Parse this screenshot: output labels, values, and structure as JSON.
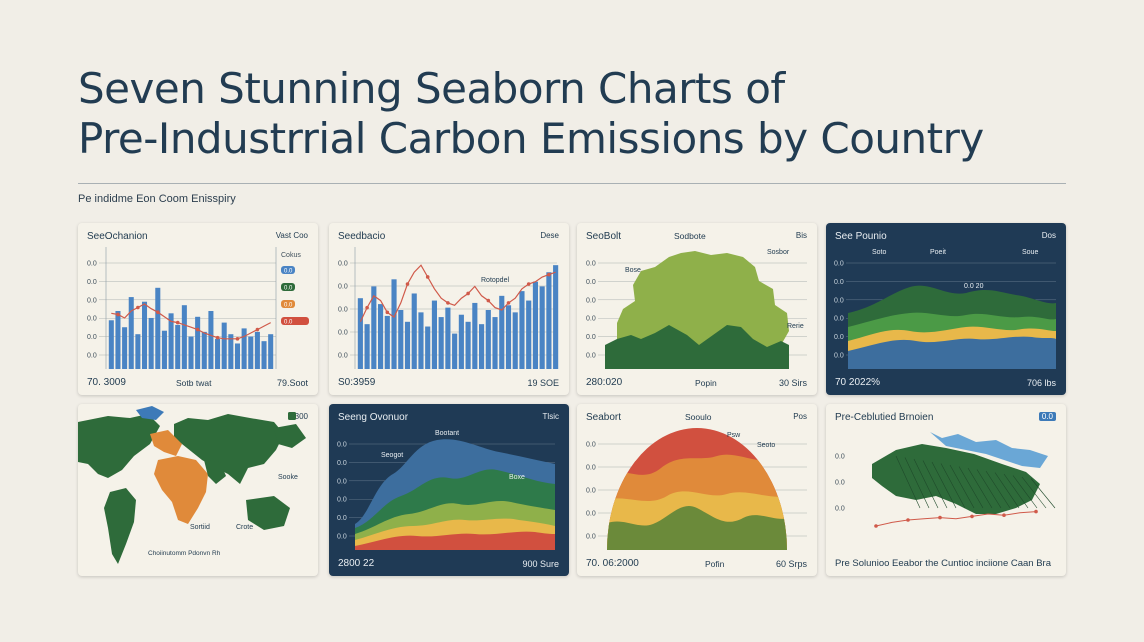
{
  "header": {
    "title_line1": "Seven Stunning Seaborn Charts of",
    "title_line2": "Pre-Industrrial Carbon Emissions by Country",
    "subtitle": "Pe  indidme Eon Coom Enisspiry"
  },
  "colors": {
    "background": "#f1eee7",
    "card": "#f5f2e9",
    "card_dark": "#1f3a55",
    "bar_blue": "#4a84c4",
    "line_red": "#d05a4a",
    "dark_green": "#2e6b3a",
    "mid_green": "#4b9a46",
    "olive": "#8fb04a",
    "yellow": "#e8b84a",
    "orange": "#e08a3a",
    "red": "#d1503f",
    "light_blue": "#6aa7d6"
  },
  "cards": [
    {
      "title": "SeeOchanion",
      "right": "Vast Coo",
      "footer_left": "70. 3009",
      "footer_mid": "Sotb   twat",
      "footer_right": "79.Soot",
      "ticks": [
        "0.0",
        "0.0",
        "0.0",
        "0.0",
        "0.0",
        "0.0"
      ],
      "legend": [
        "Cokus",
        "0.0",
        "0.0",
        "0.0",
        "0.0"
      ]
    },
    {
      "title": "Seedbacio",
      "right": "Dese",
      "footer_left": "S0:3959",
      "footer_right": "19 SOE",
      "ann": "Rotopdel",
      "ticks": [
        "0.0",
        "0.0",
        "0.0",
        "0.0",
        "0.0"
      ]
    },
    {
      "title": "SeoBolt",
      "mid": "Sodbote",
      "right": "Bis",
      "footer_left": "280:020",
      "footer_mid": "Popin",
      "footer_right": "30 Sirs",
      "ticks": [
        "0.0",
        "0.0",
        "0.0",
        "0.0",
        "0.0",
        "0.0"
      ],
      "anns": [
        "Bose",
        "Sosbor",
        "Rerie"
      ]
    },
    {
      "title": "See Pounio",
      "right": "Dos",
      "footer_left": "70 2022%",
      "footer_right": "706 lbs",
      "ticks": [
        "0.0",
        "0.0",
        "0.0",
        "0.0",
        "0.0",
        "0.0"
      ],
      "anns": [
        "Soto",
        "Poeit",
        "Soue",
        "0.0 20"
      ]
    },
    {
      "title": "",
      "right": "300",
      "anns": [
        "Sooke",
        "Crote",
        "Sortiid"
      ],
      "note": "Choiinutomm Pdonvn Rh"
    },
    {
      "title": "Seeng Ovonuor",
      "right": "Tlsic",
      "footer_left": "2800 22",
      "footer_right": "900 Sure",
      "ticks": [
        "0.0",
        "0.0",
        "0.0",
        "0.0",
        "0.0",
        "0.0"
      ],
      "anns": [
        "Bootant",
        "Seogot",
        "Boxe"
      ]
    },
    {
      "title": "Seabort",
      "mid": "Sooulo",
      "right": "Pos",
      "footer_left": "70. 06:2000",
      "footer_mid": "Pofin",
      "footer_right": "60 Srps",
      "ticks": [
        "0.0",
        "0.0",
        "0.0",
        "0.0",
        "0.0"
      ],
      "anns": [
        "Psw",
        "Seoto"
      ]
    },
    {
      "title": "Pre-Ceblutied Brnoien",
      "right": "0.0",
      "footer": "Pre Solunioo Eeabor the Cuntioc inciione Caan Bra",
      "ticks": [
        "0.0",
        "0.0",
        "0.0"
      ]
    }
  ],
  "chart_data": [
    {
      "type": "bar",
      "values": [
        42,
        50,
        36,
        62,
        30,
        58,
        44,
        70,
        33,
        48,
        38,
        55,
        28,
        45,
        32,
        50,
        26,
        40,
        30,
        22,
        35,
        28,
        32,
        24,
        30
      ],
      "series": [
        {
          "name": "line",
          "values": [
            48,
            47,
            44,
            50,
            53,
            56,
            52,
            49,
            45,
            41,
            40,
            38,
            36,
            34,
            31,
            29,
            27,
            26,
            26,
            26,
            28,
            31,
            34,
            37,
            40
          ]
        }
      ],
      "ylim": [
        0,
        100
      ]
    },
    {
      "type": "bar",
      "values": [
        60,
        38,
        70,
        55,
        45,
        76,
        50,
        40,
        64,
        48,
        36,
        58,
        44,
        52,
        30,
        46,
        40,
        56,
        38,
        50,
        44,
        62,
        54,
        48,
        66,
        58,
        74,
        70,
        82,
        88
      ],
      "series": [
        {
          "name": "line",
          "values": [
            40,
            52,
            62,
            58,
            48,
            44,
            56,
            72,
            82,
            88,
            78,
            68,
            60,
            56,
            54,
            60,
            64,
            70,
            62,
            58,
            52,
            50,
            56,
            60,
            68,
            72,
            74,
            78,
            80,
            82
          ]
        }
      ],
      "ylim": [
        0,
        100
      ]
    },
    {
      "type": "area"
    },
    {
      "type": "area"
    },
    {
      "type": "table"
    },
    {
      "type": "area"
    },
    {
      "type": "area"
    },
    {
      "type": "line",
      "values": [
        30,
        36,
        40,
        42,
        44,
        42,
        46,
        50,
        48,
        52,
        54
      ]
    }
  ]
}
